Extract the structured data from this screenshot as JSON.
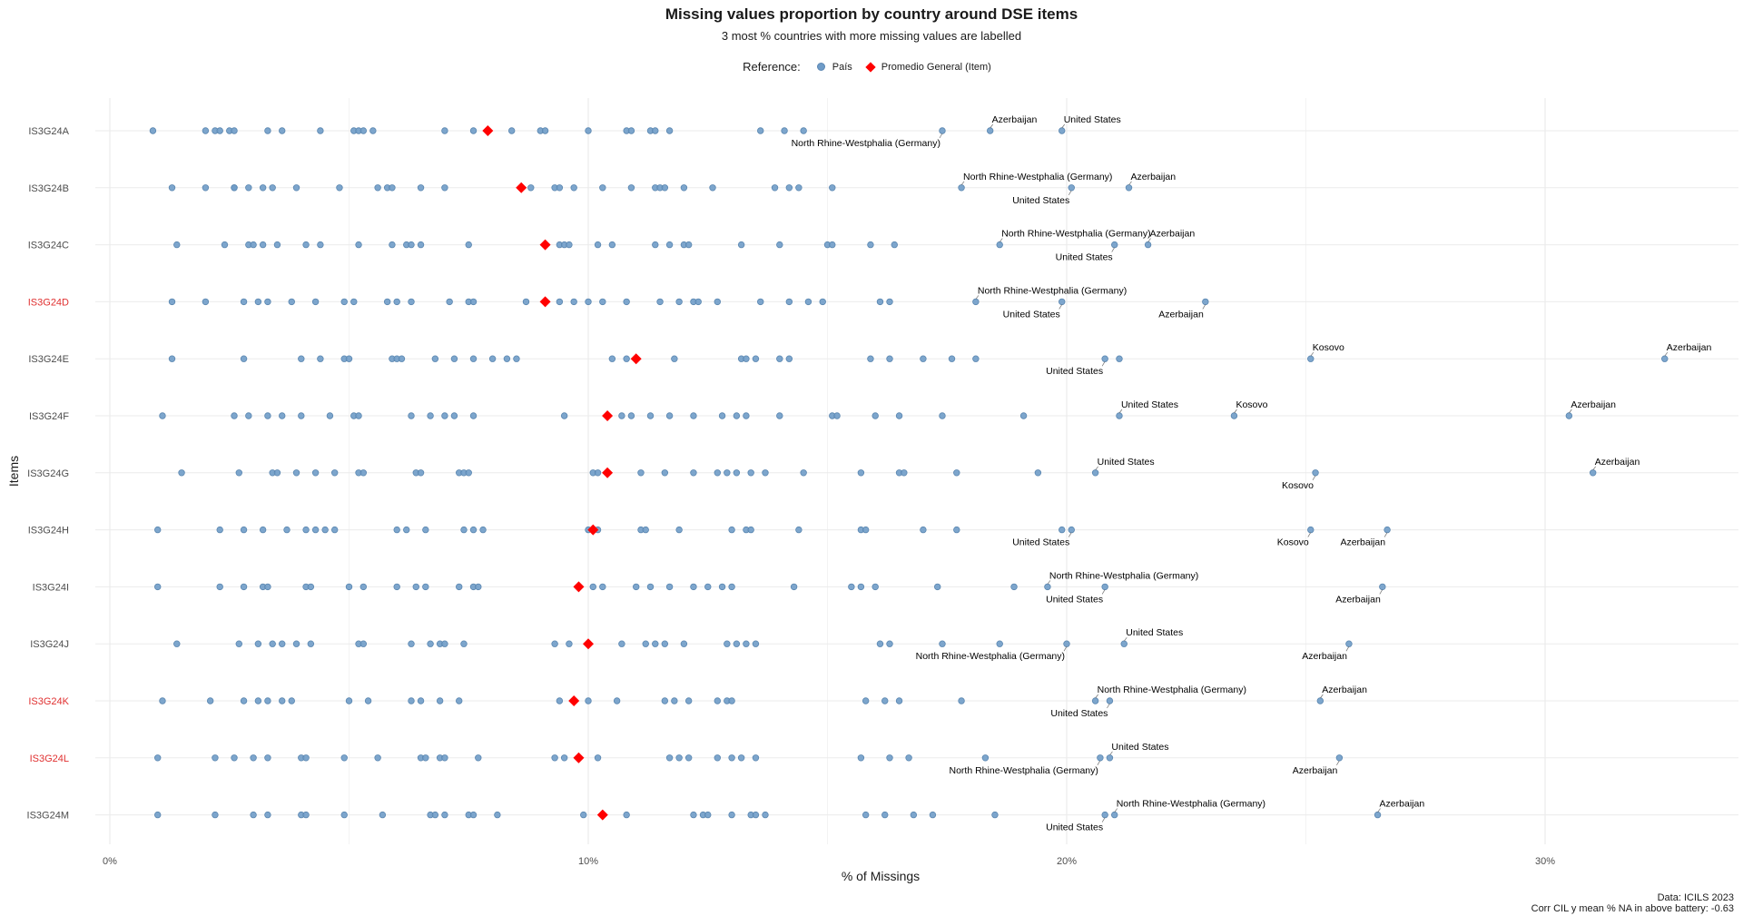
{
  "title": "Missing values proportion by country around DSE items",
  "subtitle": "3 most % countries with more missing values are labelled",
  "legend": {
    "reference_label": "Reference:",
    "country_label": "País",
    "mean_label": "Promedio General (Item)"
  },
  "caption": {
    "line1": "Data: ICILS 2023",
    "line2": "Corr CIL y mean % NA in above battery: -0.63"
  },
  "colors": {
    "country_point": "#6f9cc8",
    "mean_point": "#ff0000",
    "highlight_label": "#e03030",
    "grid": "#ebebeb"
  },
  "chart_data": {
    "type": "scatter",
    "xlabel": "% of Missings",
    "ylabel": "Items",
    "xlim": [
      -0.5,
      33
    ],
    "x_ticks": [
      0,
      10,
      20,
      30
    ],
    "x_tick_labels": [
      "0%",
      "10%",
      "20%",
      "30%"
    ],
    "grid": true,
    "legend_position": "top",
    "items": [
      {
        "name": "IS3G24A",
        "highlight": false,
        "mean": 7.9,
        "values": [
          0.9,
          2.0,
          2.2,
          2.3,
          2.5,
          2.6,
          3.3,
          3.6,
          4.4,
          5.1,
          5.2,
          5.3,
          5.5,
          7.0,
          7.6,
          8.4,
          9.0,
          9.1,
          10.0,
          10.8,
          10.9,
          11.3,
          11.4,
          11.7,
          13.6,
          14.1,
          14.5,
          17.4,
          18.4,
          19.9
        ],
        "labels": [
          {
            "text": "North Rhine-Westphalia (Germany)",
            "x": 17.4,
            "pos": "below"
          },
          {
            "text": "Azerbaijan",
            "x": 18.4,
            "pos": "above"
          },
          {
            "text": "United States",
            "x": 19.9,
            "pos": "above"
          }
        ]
      },
      {
        "name": "IS3G24B",
        "highlight": false,
        "mean": 8.6,
        "values": [
          1.3,
          2.0,
          2.6,
          2.6,
          2.9,
          3.2,
          3.4,
          3.9,
          4.8,
          5.6,
          5.8,
          5.9,
          6.5,
          7.0,
          8.8,
          9.3,
          9.4,
          9.7,
          10.3,
          10.9,
          11.4,
          11.5,
          11.6,
          12.0,
          12.6,
          13.9,
          14.2,
          14.4,
          15.1,
          17.8,
          20.1,
          21.3
        ],
        "labels": [
          {
            "text": "North Rhine-Westphalia (Germany)",
            "x": 17.8,
            "pos": "above"
          },
          {
            "text": "United States",
            "x": 20.1,
            "pos": "below"
          },
          {
            "text": "Azerbaijan",
            "x": 21.3,
            "pos": "above"
          }
        ]
      },
      {
        "name": "IS3G24C",
        "highlight": false,
        "mean": 9.1,
        "values": [
          1.4,
          2.4,
          2.9,
          3.0,
          3.2,
          3.5,
          4.1,
          4.4,
          5.2,
          5.9,
          6.2,
          6.3,
          6.5,
          7.5,
          9.4,
          9.5,
          9.6,
          10.2,
          10.5,
          11.4,
          11.7,
          12.0,
          12.1,
          13.2,
          14.0,
          15.0,
          15.1,
          15.9,
          16.4,
          18.6,
          21.0,
          21.7
        ],
        "labels": [
          {
            "text": "North Rhine-Westphalia (Germany)",
            "x": 18.6,
            "pos": "above"
          },
          {
            "text": "United States",
            "x": 21.0,
            "pos": "below"
          },
          {
            "text": "Azerbaijan",
            "x": 21.7,
            "pos": "above"
          }
        ]
      },
      {
        "name": "IS3G24D",
        "highlight": true,
        "mean": 9.1,
        "values": [
          1.3,
          2.0,
          2.8,
          3.1,
          3.3,
          3.8,
          4.3,
          4.9,
          5.1,
          5.8,
          6.0,
          6.3,
          7.1,
          7.5,
          7.6,
          8.7,
          9.4,
          9.7,
          10.0,
          10.3,
          10.8,
          11.5,
          11.9,
          12.2,
          12.3,
          12.7,
          13.6,
          14.2,
          14.6,
          14.9,
          16.1,
          16.3,
          18.1,
          19.9,
          22.9
        ],
        "labels": [
          {
            "text": "North Rhine-Westphalia (Germany)",
            "x": 18.1,
            "pos": "above"
          },
          {
            "text": "United States",
            "x": 19.9,
            "pos": "below"
          },
          {
            "text": "Azerbaijan",
            "x": 22.9,
            "pos": "below"
          }
        ]
      },
      {
        "name": "IS3G24E",
        "highlight": false,
        "mean": 11.0,
        "values": [
          1.3,
          2.8,
          4.0,
          4.4,
          4.9,
          5.0,
          5.9,
          6.0,
          6.1,
          6.8,
          7.2,
          7.6,
          8.0,
          8.3,
          8.5,
          10.5,
          10.8,
          11.8,
          13.2,
          13.3,
          13.5,
          14.0,
          14.2,
          15.9,
          16.3,
          17.0,
          17.6,
          18.1,
          20.8,
          21.1,
          25.1,
          32.5
        ],
        "labels": [
          {
            "text": "United States",
            "x": 20.8,
            "pos": "below"
          },
          {
            "text": "Kosovo",
            "x": 25.1,
            "pos": "above"
          },
          {
            "text": "Azerbaijan",
            "x": 32.5,
            "pos": "above"
          }
        ]
      },
      {
        "name": "IS3G24F",
        "highlight": false,
        "mean": 10.4,
        "values": [
          1.1,
          2.6,
          2.9,
          3.3,
          3.6,
          4.0,
          4.6,
          5.1,
          5.2,
          6.3,
          6.7,
          7.0,
          7.2,
          7.6,
          9.5,
          10.7,
          10.9,
          11.3,
          11.7,
          12.2,
          12.8,
          13.1,
          13.3,
          14.0,
          15.1,
          15.2,
          16.0,
          16.5,
          17.4,
          19.1,
          21.1,
          23.5,
          30.5
        ],
        "labels": [
          {
            "text": "United States",
            "x": 21.1,
            "pos": "above"
          },
          {
            "text": "Kosovo",
            "x": 23.5,
            "pos": "above"
          },
          {
            "text": "Azerbaijan",
            "x": 30.5,
            "pos": "above"
          }
        ]
      },
      {
        "name": "IS3G24G",
        "highlight": false,
        "mean": 10.4,
        "values": [
          1.5,
          2.7,
          3.4,
          3.5,
          3.9,
          4.3,
          4.7,
          5.2,
          5.3,
          6.4,
          6.5,
          7.3,
          7.4,
          7.5,
          10.1,
          10.2,
          11.1,
          11.6,
          12.2,
          12.7,
          12.9,
          13.1,
          13.4,
          13.7,
          14.5,
          15.7,
          16.5,
          16.6,
          17.7,
          19.4,
          20.6,
          25.2,
          31.0
        ],
        "labels": [
          {
            "text": "United States",
            "x": 20.6,
            "pos": "above"
          },
          {
            "text": "Kosovo",
            "x": 25.2,
            "pos": "below"
          },
          {
            "text": "Azerbaijan",
            "x": 31.0,
            "pos": "above"
          }
        ]
      },
      {
        "name": "IS3G24H",
        "highlight": false,
        "mean": 10.1,
        "values": [
          1.0,
          2.3,
          2.8,
          3.2,
          3.7,
          4.1,
          4.3,
          4.5,
          4.7,
          6.0,
          6.2,
          6.6,
          7.4,
          7.6,
          7.8,
          10.0,
          10.2,
          11.1,
          11.2,
          11.9,
          13.0,
          13.3,
          13.4,
          14.4,
          15.7,
          15.8,
          17.0,
          17.7,
          19.9,
          20.1,
          25.1,
          26.7
        ],
        "labels": [
          {
            "text": "United States",
            "x": 20.1,
            "pos": "below"
          },
          {
            "text": "Kosovo",
            "x": 25.1,
            "pos": "below"
          },
          {
            "text": "Azerbaijan",
            "x": 26.7,
            "pos": "below"
          }
        ]
      },
      {
        "name": "IS3G24I",
        "highlight": false,
        "mean": 9.8,
        "values": [
          1.0,
          2.3,
          2.8,
          3.2,
          3.3,
          4.1,
          4.2,
          5.0,
          5.3,
          6.0,
          6.4,
          6.6,
          7.3,
          7.6,
          7.7,
          10.1,
          10.3,
          11.0,
          11.3,
          11.7,
          12.2,
          12.5,
          12.8,
          13.0,
          14.3,
          15.5,
          15.7,
          16.0,
          17.3,
          18.9,
          19.6,
          20.8,
          26.6
        ],
        "labels": [
          {
            "text": "North Rhine-Westphalia (Germany)",
            "x": 19.6,
            "pos": "above"
          },
          {
            "text": "United States",
            "x": 20.8,
            "pos": "below"
          },
          {
            "text": "Azerbaijan",
            "x": 26.6,
            "pos": "below"
          }
        ]
      },
      {
        "name": "IS3G24J",
        "highlight": false,
        "mean": 10.0,
        "values": [
          1.4,
          2.7,
          3.1,
          3.4,
          3.6,
          3.9,
          4.2,
          5.2,
          5.3,
          6.3,
          6.7,
          6.9,
          7.0,
          7.4,
          9.3,
          9.6,
          10.7,
          11.2,
          11.4,
          11.6,
          12.0,
          12.9,
          13.1,
          13.3,
          13.5,
          16.1,
          16.3,
          17.4,
          18.6,
          20.0,
          21.2,
          25.9
        ],
        "labels": [
          {
            "text": "North Rhine-Westphalia (Germany)",
            "x": 20.0,
            "pos": "below"
          },
          {
            "text": "United States",
            "x": 21.2,
            "pos": "above"
          },
          {
            "text": "Azerbaijan",
            "x": 25.9,
            "pos": "below"
          }
        ]
      },
      {
        "name": "IS3G24K",
        "highlight": true,
        "mean": 9.7,
        "values": [
          1.1,
          2.1,
          2.8,
          3.1,
          3.3,
          3.6,
          3.8,
          5.0,
          5.4,
          6.3,
          6.5,
          6.9,
          7.3,
          9.4,
          10.0,
          10.6,
          11.6,
          11.8,
          12.1,
          12.7,
          12.9,
          13.0,
          15.8,
          16.2,
          16.5,
          17.8,
          20.6,
          20.9,
          25.3
        ],
        "labels": [
          {
            "text": "North Rhine-Westphalia (Germany)",
            "x": 20.6,
            "pos": "above"
          },
          {
            "text": "United States",
            "x": 20.9,
            "pos": "below"
          },
          {
            "text": "Azerbaijan",
            "x": 25.3,
            "pos": "above"
          }
        ]
      },
      {
        "name": "IS3G24L",
        "highlight": true,
        "mean": 9.8,
        "values": [
          1.0,
          2.2,
          2.6,
          3.0,
          3.3,
          4.0,
          4.1,
          4.9,
          5.6,
          6.5,
          6.6,
          6.9,
          7.0,
          7.7,
          9.3,
          9.5,
          10.2,
          11.7,
          11.9,
          12.1,
          12.7,
          13.0,
          13.2,
          13.5,
          15.7,
          16.3,
          16.7,
          18.3,
          20.7,
          20.9,
          25.7
        ],
        "labels": [
          {
            "text": "North Rhine-Westphalia (Germany)",
            "x": 20.7,
            "pos": "below"
          },
          {
            "text": "United States",
            "x": 20.9,
            "pos": "above"
          },
          {
            "text": "Azerbaijan",
            "x": 25.7,
            "pos": "below"
          }
        ]
      },
      {
        "name": "IS3G24M",
        "highlight": false,
        "mean": 10.3,
        "values": [
          1.0,
          2.2,
          3.0,
          3.3,
          4.0,
          4.1,
          4.9,
          5.7,
          6.7,
          6.8,
          7.0,
          7.5,
          7.6,
          8.1,
          9.9,
          10.8,
          12.2,
          12.4,
          12.5,
          13.0,
          13.4,
          13.5,
          13.7,
          15.8,
          16.2,
          16.8,
          17.2,
          18.5,
          20.8,
          21.0,
          26.5
        ],
        "labels": [
          {
            "text": "North Rhine-Westphalia (Germany)",
            "x": 21.0,
            "pos": "above"
          },
          {
            "text": "United States",
            "x": 20.8,
            "pos": "below"
          },
          {
            "text": "Azerbaijan",
            "x": 26.5,
            "pos": "above"
          }
        ]
      }
    ]
  }
}
